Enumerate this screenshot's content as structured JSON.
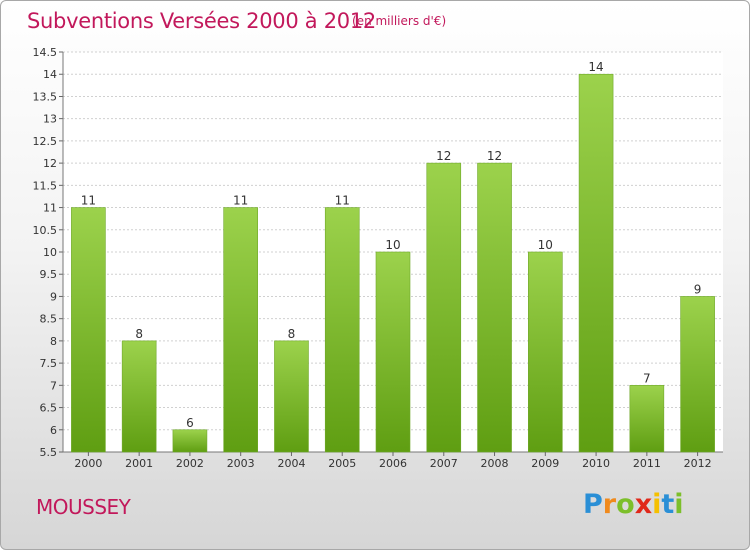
{
  "title": "Subventions Versées 2000 à 2012",
  "subtitle": "(en milliers d'€)",
  "commune": "MOUSSEY",
  "logo": {
    "letters": [
      "P",
      "r",
      "o",
      "x",
      "i",
      "t",
      "i"
    ],
    "colors": [
      "#2a8fd6",
      "#f08a1c",
      "#7cbf2a",
      "#e0281a",
      "#f5c000",
      "#2a8fd6",
      "#7cbf2a"
    ]
  },
  "colors": {
    "accent": "#c2185b",
    "bar_top": "#9cd24c",
    "bar_bottom": "#5f9e12"
  },
  "chart_data": {
    "type": "bar",
    "categories": [
      "2000",
      "2001",
      "2002",
      "2003",
      "2004",
      "2005",
      "2006",
      "2007",
      "2008",
      "2009",
      "2010",
      "2011",
      "2012"
    ],
    "values": [
      11,
      8,
      6,
      11,
      8,
      11,
      10,
      12,
      12,
      10,
      14,
      7,
      9
    ],
    "data_labels": [
      "11",
      "8",
      "6",
      "11",
      "8",
      "11",
      "10",
      "12",
      "12",
      "10",
      "14",
      "7",
      "9"
    ],
    "ylim": [
      5.5,
      14.5
    ],
    "yticks": [
      "5.5",
      "6",
      "6.5",
      "7",
      "7.5",
      "8",
      "8.5",
      "9",
      "9.5",
      "10",
      "10.5",
      "11",
      "11.5",
      "12",
      "12.5",
      "13",
      "13.5",
      "14",
      "14.5"
    ],
    "grid": true,
    "xlabel": "",
    "ylabel": ""
  }
}
